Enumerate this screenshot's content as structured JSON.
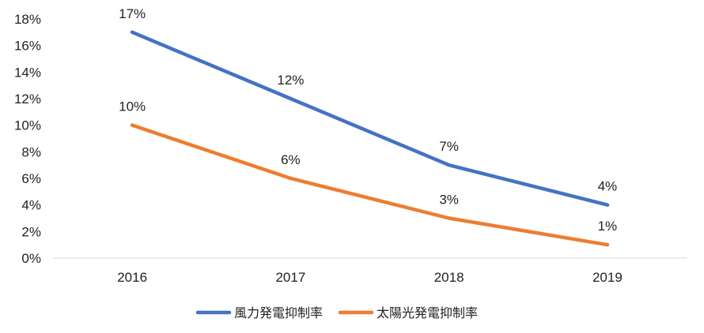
{
  "chart_data": {
    "type": "line",
    "title": "",
    "xlabel": "",
    "ylabel": "",
    "categories": [
      "2016",
      "2017",
      "2018",
      "2019"
    ],
    "ylim": [
      0,
      18
    ],
    "yticks": [
      0,
      2,
      4,
      6,
      8,
      10,
      12,
      14,
      16,
      18
    ],
    "ytick_labels": [
      "0%",
      "2%",
      "4%",
      "6%",
      "8%",
      "10%",
      "12%",
      "14%",
      "16%",
      "18%"
    ],
    "grid": false,
    "legend_position": "bottom",
    "series": [
      {
        "name": "風力発電抑制率",
        "color": "#4472C4",
        "values": [
          17,
          12,
          7,
          4
        ],
        "labels": [
          "17%",
          "12%",
          "7%",
          "4%"
        ]
      },
      {
        "name": "太陽光発電抑制率",
        "color": "#ED7D31",
        "values": [
          10,
          6,
          3,
          1
        ],
        "labels": [
          "10%",
          "6%",
          "3%",
          "1%"
        ]
      }
    ]
  }
}
